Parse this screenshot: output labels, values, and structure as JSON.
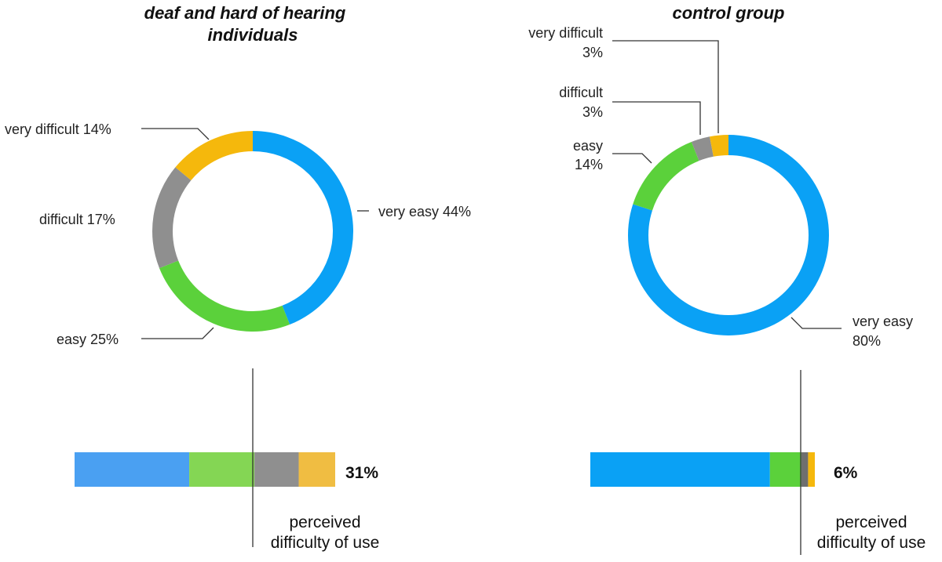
{
  "colors": {
    "very_easy": "#0aa1f5",
    "easy": "#5bd13b",
    "difficult": "#8f8f8f",
    "very_difficult": "#f5b80c",
    "bar_very_easy_left": "#4aa0f2",
    "bar_easy_left": "#84d654",
    "bar_very_difficult_left": "#f0bd42"
  },
  "chart_data": [
    {
      "type": "donut",
      "title_line1": "deaf and hard of hearing",
      "title_line2": "individuals",
      "slices": [
        {
          "key": "very_easy",
          "value": 44,
          "label": "very easy 44%"
        },
        {
          "key": "easy",
          "value": 25,
          "label": "easy 25%"
        },
        {
          "key": "difficult",
          "value": 17,
          "label": "difficult 17%"
        },
        {
          "key": "very_difficult",
          "value": 14,
          "label": "very difficult 14%"
        }
      ],
      "bar": {
        "type": "stacked-bar",
        "segments": [
          {
            "key": "very_easy",
            "value": 44
          },
          {
            "key": "easy",
            "value": 25
          },
          {
            "key": "difficult",
            "value": 17
          },
          {
            "key": "very_difficult",
            "value": 14
          }
        ],
        "summary": "31%",
        "axis_label_line1": "perceived",
        "axis_label_line2": "difficulty of use"
      }
    },
    {
      "type": "donut",
      "title_line1": "control group",
      "slices": [
        {
          "key": "very_easy",
          "value": 80,
          "label_line1": "very easy",
          "label_line2": "80%"
        },
        {
          "key": "easy",
          "value": 14,
          "label_line1": "easy",
          "label_line2": "14%"
        },
        {
          "key": "difficult",
          "value": 3,
          "label_line1": "difficult",
          "label_line2": "3%"
        },
        {
          "key": "very_difficult",
          "value": 3,
          "label_line1": "very difficult",
          "label_line2": "3%"
        }
      ],
      "bar": {
        "type": "stacked-bar",
        "segments": [
          {
            "key": "very_easy",
            "value": 80
          },
          {
            "key": "easy",
            "value": 14
          },
          {
            "key": "difficult",
            "value": 3
          },
          {
            "key": "very_difficult",
            "value": 3
          }
        ],
        "summary": "6%",
        "axis_label_line1": "perceived",
        "axis_label_line2": "difficulty of use"
      }
    }
  ]
}
